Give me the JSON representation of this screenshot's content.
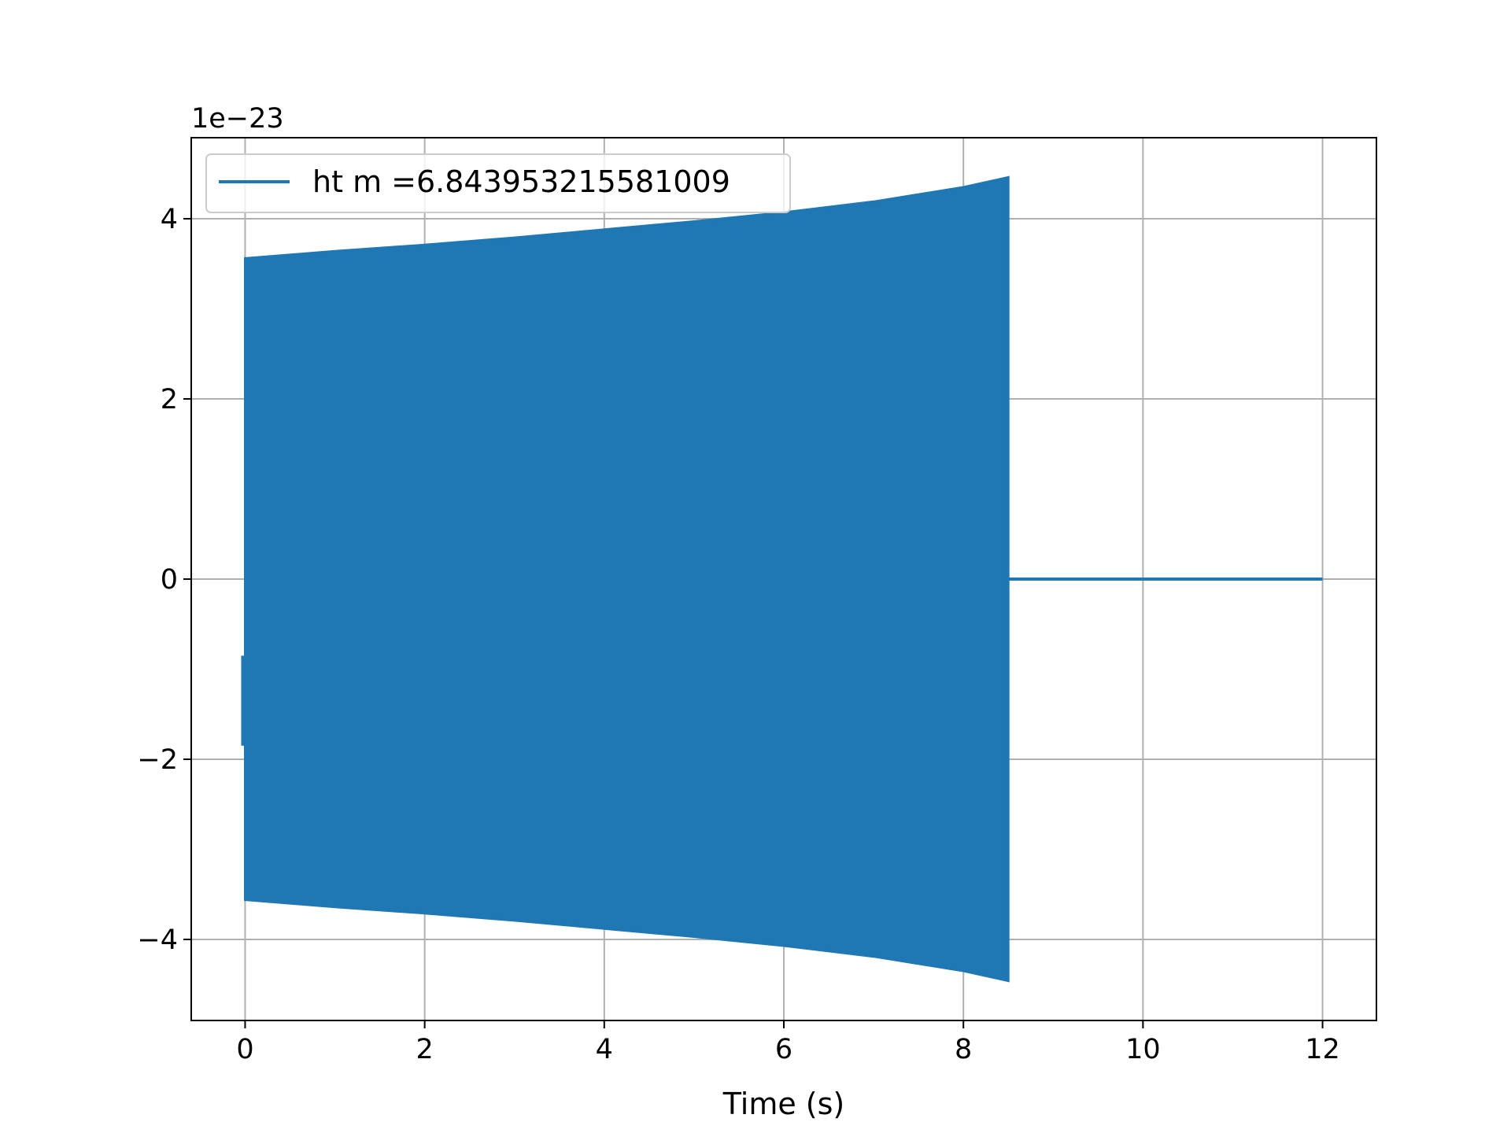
{
  "chart_data": {
    "type": "line",
    "title": "",
    "xlabel": "Time (s)",
    "ylabel": "",
    "y_offset_text": "1e−23",
    "xlim": [
      -0.6,
      12.6
    ],
    "ylim": [
      -4.9,
      4.9
    ],
    "x_ticks": [
      0,
      2,
      4,
      6,
      8,
      10,
      12
    ],
    "x_tick_labels": [
      "0",
      "2",
      "4",
      "6",
      "8",
      "10",
      "12"
    ],
    "y_ticks": [
      -4,
      -2,
      0,
      2,
      4
    ],
    "y_tick_labels": [
      "−4",
      "−2",
      "0",
      "2",
      "4"
    ],
    "grid": true,
    "legend_position": "upper-left",
    "series": [
      {
        "name": "ht m =6.843953215581009",
        "color": "#1f77b4",
        "envelope": {
          "x": [
            0,
            1,
            2,
            3,
            4,
            5,
            6,
            7,
            8,
            8.5
          ],
          "upper": [
            3.56,
            3.64,
            3.71,
            3.79,
            3.88,
            3.97,
            4.07,
            4.19,
            4.35,
            4.46
          ],
          "lower": [
            -3.56,
            -3.64,
            -3.71,
            -3.79,
            -3.88,
            -3.97,
            -4.07,
            -4.19,
            -4.35,
            -4.46
          ]
        },
        "start_marker": {
          "x": 0,
          "y_min": -1.85,
          "y_max": -0.85
        },
        "tail": {
          "x": [
            8.5,
            12
          ],
          "y": [
            0,
            0
          ]
        }
      }
    ]
  }
}
